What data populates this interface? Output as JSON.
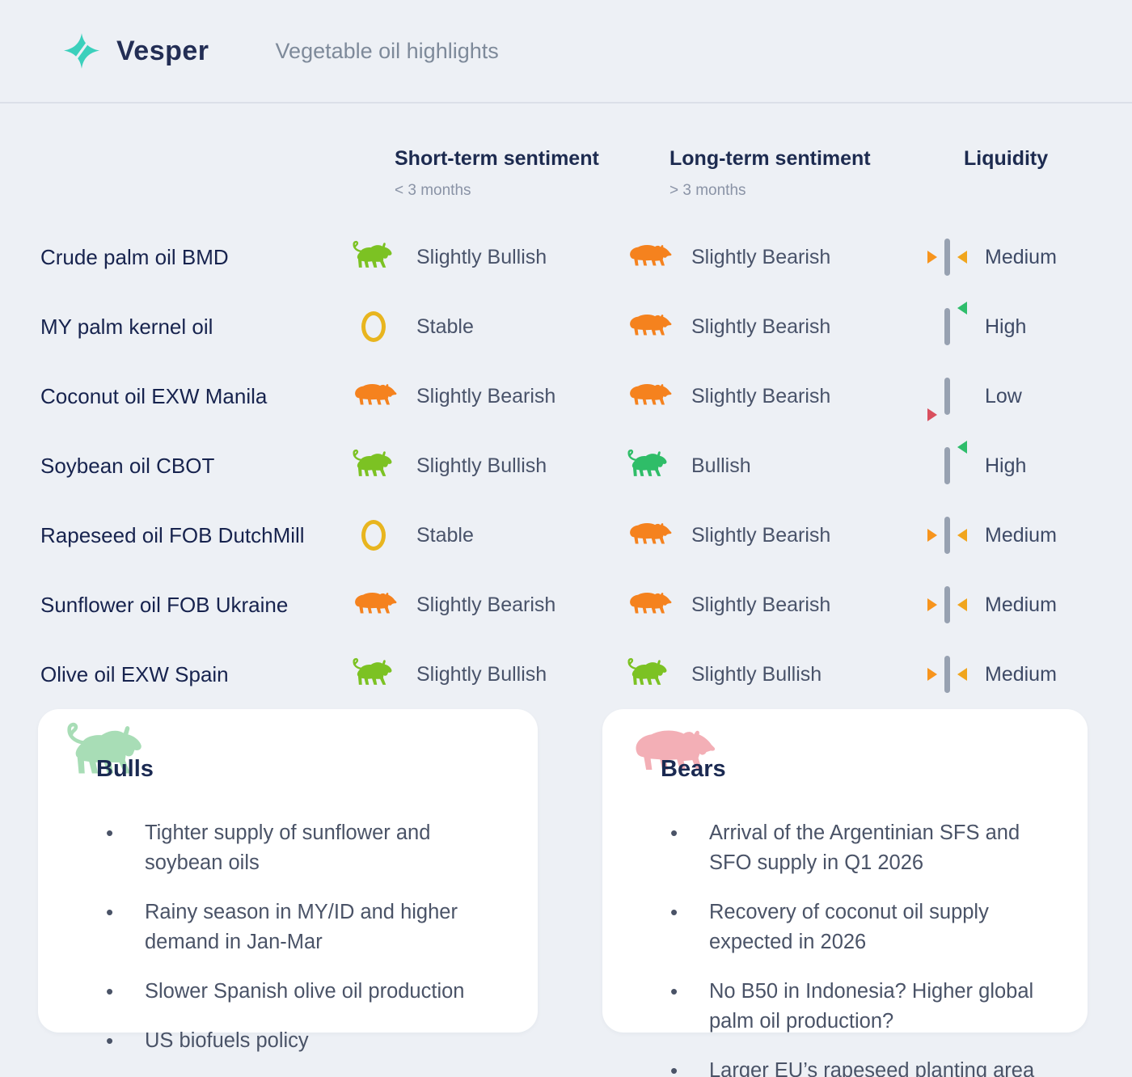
{
  "header": {
    "brand": "Vesper",
    "subtitle": "Vegetable oil highlights",
    "logo_color": "#3BD0BC"
  },
  "columns": {
    "short": {
      "label": "Short-term sentiment",
      "sub": "< 3 months"
    },
    "long": {
      "label": "Long-term sentiment",
      "sub": "> 3 months"
    },
    "liquidity": {
      "label": "Liquidity"
    }
  },
  "icon_colors": {
    "slightly_bullish": "#7CC223",
    "bullish": "#2FBD68",
    "slightly_bearish": "#F5821E",
    "stable": "#E8B51F"
  },
  "liquidity_colors": {
    "bar": "#97A1B1",
    "medium_left": "#F7941D",
    "medium_right": "#F0A51D",
    "high": "#2EBD6B",
    "low": "#D94F5E"
  },
  "rows": [
    {
      "product": "Crude palm oil BMD",
      "short": {
        "icon": "bull-light",
        "label": "Slightly Bullish"
      },
      "long": {
        "icon": "bear",
        "label": "Slightly Bearish"
      },
      "liquidity": {
        "level": "medium",
        "label": "Medium"
      }
    },
    {
      "product": "MY palm kernel oil",
      "short": {
        "icon": "stable",
        "label": "Stable"
      },
      "long": {
        "icon": "bear",
        "label": "Slightly Bearish"
      },
      "liquidity": {
        "level": "high",
        "label": "High"
      }
    },
    {
      "product": "Coconut oil EXW Manila",
      "short": {
        "icon": "bear",
        "label": "Slightly Bearish"
      },
      "long": {
        "icon": "bear",
        "label": "Slightly Bearish"
      },
      "liquidity": {
        "level": "low",
        "label": "Low"
      }
    },
    {
      "product": "Soybean oil CBOT",
      "short": {
        "icon": "bull-light",
        "label": "Slightly Bullish"
      },
      "long": {
        "icon": "bull",
        "label": "Bullish"
      },
      "liquidity": {
        "level": "high",
        "label": "High"
      }
    },
    {
      "product": "Rapeseed oil FOB DutchMill",
      "short": {
        "icon": "stable",
        "label": "Stable"
      },
      "long": {
        "icon": "bear",
        "label": "Slightly Bearish"
      },
      "liquidity": {
        "level": "medium",
        "label": "Medium"
      }
    },
    {
      "product": "Sunflower oil FOB Ukraine",
      "short": {
        "icon": "bear",
        "label": "Slightly Bearish"
      },
      "long": {
        "icon": "bear",
        "label": "Slightly Bearish"
      },
      "liquidity": {
        "level": "medium",
        "label": "Medium"
      }
    },
    {
      "product": "Olive oil EXW Spain",
      "short": {
        "icon": "bull-light",
        "label": "Slightly Bullish"
      },
      "long": {
        "icon": "bull-light",
        "label": "Slightly Bullish"
      },
      "liquidity": {
        "level": "medium",
        "label": "Medium"
      }
    }
  ],
  "cards": {
    "bulls": {
      "title": "Bulls",
      "icon_color": "#A8DDB6",
      "items": [
        "Tighter supply of sunflower and soybean oils",
        "Rainy season in MY/ID and higher demand in Jan-Mar",
        "Slower Spanish olive oil production",
        "US biofuels policy"
      ]
    },
    "bears": {
      "title": "Bears",
      "icon_color": "#F3AFB6",
      "items": [
        "Arrival of the Argentinian SFS and SFO supply in Q1 2026",
        "Recovery of coconut oil supply expected in 2026",
        "No B50 in Indonesia? Higher global palm oil production?",
        "Larger EU’s rapeseed planting area"
      ]
    }
  }
}
